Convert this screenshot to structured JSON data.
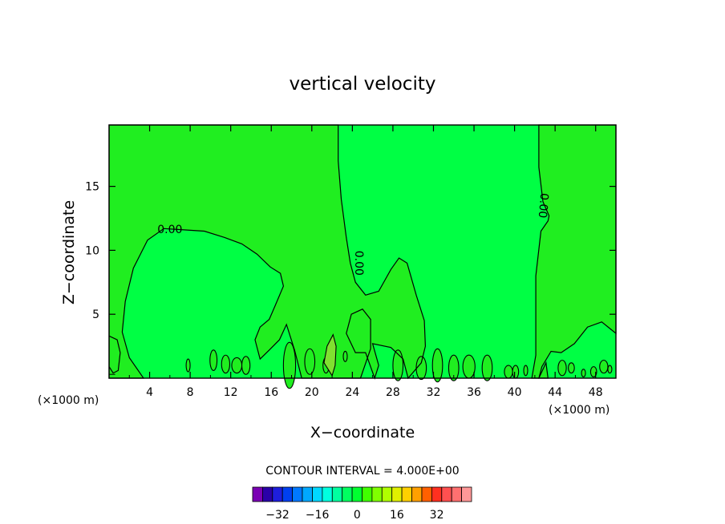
{
  "chart_data": {
    "type": "contour",
    "title": "vertical velocity",
    "xlabel": "X−coordinate",
    "ylabel": "Z−coordinate",
    "x_unit_left": "(×1000 m)",
    "x_unit_right": "(×1000 m)",
    "xlim": [
      0,
      50
    ],
    "ylim": [
      0,
      19.8
    ],
    "x_ticks": [
      4,
      8,
      12,
      16,
      20,
      24,
      28,
      32,
      36,
      40,
      44,
      48
    ],
    "y_ticks": [
      5,
      10,
      15
    ],
    "contour_interval_text": "CONTOUR INTERVAL = 4.000E+00",
    "contour_label": "0.00",
    "contour_labels": [
      {
        "text": "0.00",
        "x": 6.0,
        "y": 11.6,
        "angle": 0
      },
      {
        "text": "0.00",
        "x": 24.6,
        "y": 9.0,
        "angle": 90
      },
      {
        "text": "0.00",
        "x": 42.8,
        "y": 13.5,
        "angle": 95
      }
    ],
    "colorbar": {
      "ticks": [
        "−32",
        "−16",
        "0",
        "16",
        "32"
      ],
      "levels": [
        -40,
        -36,
        -32,
        -28,
        -24,
        -20,
        -16,
        -12,
        -8,
        -4,
        0,
        4,
        8,
        12,
        16,
        20,
        24,
        28,
        32,
        36,
        40
      ],
      "colors": [
        "#7a00b4",
        "#2a00a8",
        "#1e1edc",
        "#0040f0",
        "#0078ff",
        "#00a8ff",
        "#00d8ff",
        "#00ffe0",
        "#00ffa0",
        "#00ff60",
        "#00ff30",
        "#40ff00",
        "#80ff00",
        "#b0ff00",
        "#e0f000",
        "#ffd000",
        "#ffa000",
        "#ff6000",
        "#ff3020",
        "#ff5050",
        "#ff7070",
        "#ff9898"
      ]
    },
    "fill_colors": {
      "positive": "#20ee20",
      "negative": "#00ff44",
      "strong_positive": "#80e030"
    }
  }
}
